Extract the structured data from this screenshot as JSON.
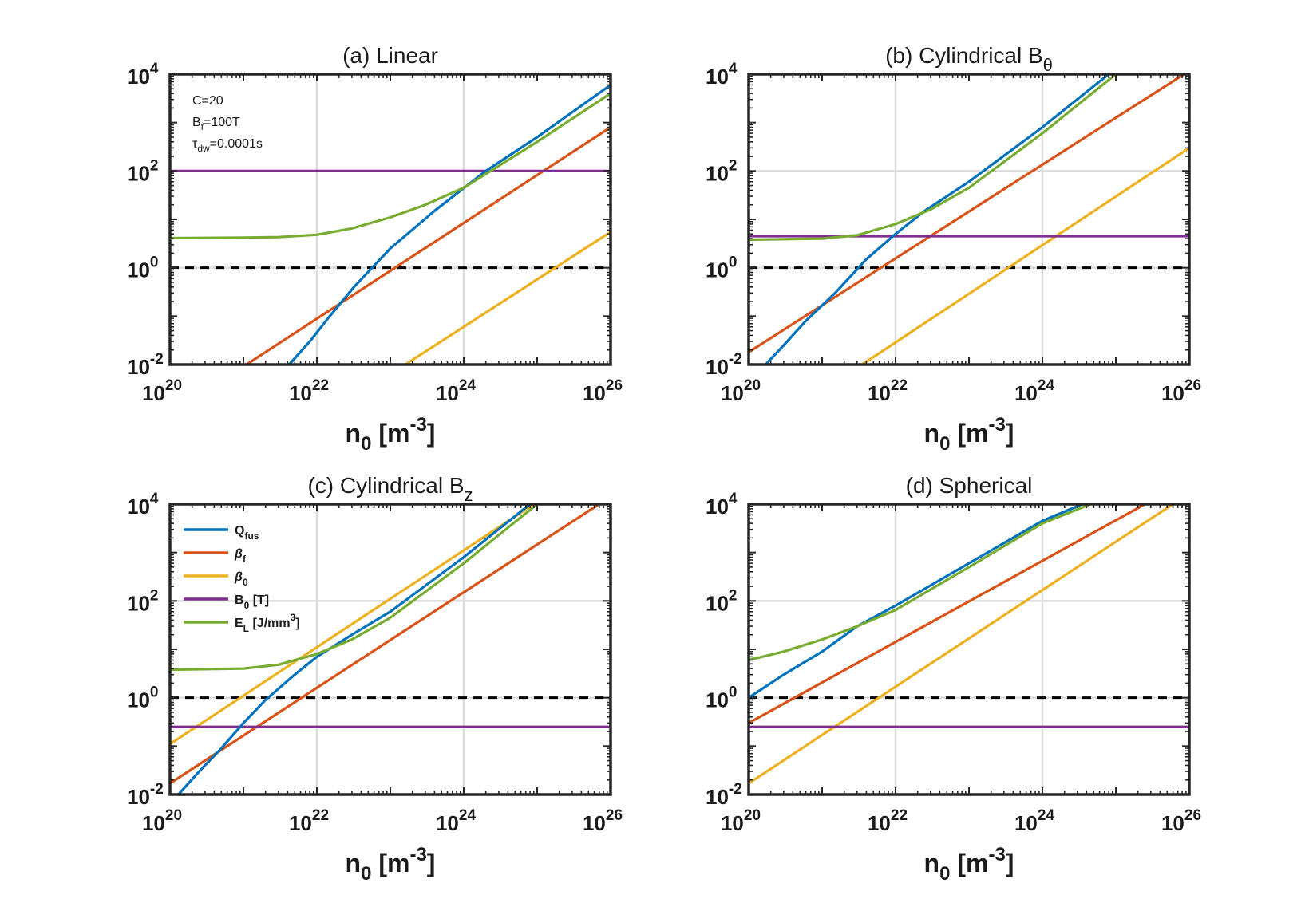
{
  "colors": {
    "Q_fus": "#0072BD",
    "beta_f": "#D95319",
    "beta_0": "#EDB120",
    "B_0": "#7E2F8E",
    "E_L": "#77AC30",
    "reference": "#000000",
    "grid": "#dcdcdc",
    "axes": "#262626"
  },
  "legend": {
    "panel": 2,
    "items": [
      {
        "key": "Q_fus",
        "base": "Q",
        "sub": "fus",
        "sup": "",
        "tail": "",
        "greek": false
      },
      {
        "key": "beta_f",
        "base": "β",
        "sub": "f",
        "sup": "",
        "tail": "",
        "greek": true
      },
      {
        "key": "beta_0",
        "base": "β",
        "sub": "0",
        "sup": "",
        "tail": "",
        "greek": true
      },
      {
        "key": "B_0",
        "base": "B",
        "sub": "0",
        "sup": "",
        "tail": " [T]",
        "greek": false
      },
      {
        "key": "E_L",
        "base": "E",
        "sub": "L",
        "sup": "3",
        "tail": " [J/mm",
        "close": "]",
        "greek": false
      }
    ]
  },
  "annotation": {
    "panel": 0,
    "lines": [
      {
        "base": "C=20",
        "sub": "",
        "tail": ""
      },
      {
        "base": "B",
        "sub": "f",
        "tail": "=100T"
      },
      {
        "base": "τ",
        "sub": "dw",
        "tail": "=0.0001s"
      }
    ]
  },
  "chart_data": [
    {
      "type": "line",
      "title": "(a) Linear",
      "title_sub": "",
      "xlabel": {
        "base": "n",
        "sub": "0",
        "unit_open": " [m",
        "sup": "-3",
        "unit_close": "]"
      },
      "xscale": "log",
      "yscale": "log",
      "xlim": [
        1e+20,
        1e+26
      ],
      "ylim": [
        0.01,
        10000
      ],
      "xticks": [
        {
          "base": "10",
          "exp": "20"
        },
        {
          "base": "10",
          "exp": "22"
        },
        {
          "base": "10",
          "exp": "24"
        },
        {
          "base": "10",
          "exp": "26"
        }
      ],
      "yticks": [
        {
          "base": "10",
          "exp": "-2"
        },
        {
          "base": "10",
          "exp": "0"
        },
        {
          "base": "10",
          "exp": "2"
        },
        {
          "base": "10",
          "exp": "4"
        }
      ],
      "grid": true,
      "reference_line": {
        "y": 1,
        "style": "dashed"
      },
      "series": [
        {
          "name": "Q_fus",
          "x": [
            4.2e+21,
            8e+21,
            1.5e+22,
            3.2e+22,
            1e+23,
            4e+23,
            2e+24,
            1e+25,
            1e+26
          ],
          "y": [
            0.01,
            0.03,
            0.1,
            0.4,
            2.5,
            15,
            100,
            500,
            6000
          ]
        },
        {
          "name": "beta_f",
          "x": [
            1.1e+21,
            1e+26
          ],
          "y": [
            0.01,
            800
          ]
        },
        {
          "name": "beta_0",
          "x": [
            1.6e+23,
            1e+26
          ],
          "y": [
            0.01,
            5.5
          ]
        },
        {
          "name": "B_0",
          "x": [
            1e+20,
            1e+26
          ],
          "y": [
            100,
            100
          ]
        },
        {
          "name": "E_L",
          "x": [
            1e+20,
            1e+21,
            3e+21,
            1e+22,
            3e+22,
            1e+23,
            3e+23,
            1e+24,
            1e+25,
            1e+26
          ],
          "y": [
            4.1,
            4.2,
            4.3,
            4.8,
            6.5,
            11,
            20,
            45,
            400,
            4000
          ]
        }
      ]
    },
    {
      "type": "line",
      "title": "(b) Cylindrical B",
      "title_sub": "θ",
      "xlabel": {
        "base": "n",
        "sub": "0",
        "unit_open": " [m",
        "sup": "-3",
        "unit_close": "]"
      },
      "xscale": "log",
      "yscale": "log",
      "xlim": [
        1e+20,
        1e+26
      ],
      "ylim": [
        0.01,
        10000
      ],
      "xticks": [
        {
          "base": "10",
          "exp": "20"
        },
        {
          "base": "10",
          "exp": "22"
        },
        {
          "base": "10",
          "exp": "24"
        },
        {
          "base": "10",
          "exp": "26"
        }
      ],
      "yticks": [
        {
          "base": "10",
          "exp": "-2"
        },
        {
          "base": "10",
          "exp": "0"
        },
        {
          "base": "10",
          "exp": "2"
        },
        {
          "base": "10",
          "exp": "4"
        }
      ],
      "grid": true,
      "reference_line": {
        "y": 1,
        "style": "dashed"
      },
      "series": [
        {
          "name": "Q_fus",
          "x": [
            1.7e+20,
            3e+20,
            6e+20,
            1.5e+21,
            4e+21,
            1e+22,
            2.5e+22,
            1e+23,
            1e+24,
            8e+24
          ],
          "y": [
            0.01,
            0.025,
            0.08,
            0.3,
            1.5,
            5,
            15,
            60,
            800,
            10000
          ]
        },
        {
          "name": "beta_f",
          "x": [
            1e+20,
            8.5e+25
          ],
          "y": [
            0.018,
            10000
          ]
        },
        {
          "name": "beta_0",
          "x": [
            3.5e+21,
            1e+26
          ],
          "y": [
            0.01,
            300
          ]
        },
        {
          "name": "B_0",
          "x": [
            1e+20,
            1e+26
          ],
          "y": [
            4.5,
            4.5
          ]
        },
        {
          "name": "E_L",
          "x": [
            1e+20,
            1e+21,
            3e+21,
            1e+22,
            3e+22,
            1e+23,
            1e+24,
            1e+25
          ],
          "y": [
            3.8,
            4.0,
            4.7,
            8,
            16,
            45,
            600,
            10000
          ]
        }
      ]
    },
    {
      "type": "line",
      "title": "(c) Cylindrical B",
      "title_sub": "z",
      "xlabel": {
        "base": "n",
        "sub": "0",
        "unit_open": " [m",
        "sup": "-3",
        "unit_close": "]"
      },
      "xscale": "log",
      "yscale": "log",
      "xlim": [
        1e+20,
        1e+26
      ],
      "ylim": [
        0.01,
        10000
      ],
      "xticks": [
        {
          "base": "10",
          "exp": "20"
        },
        {
          "base": "10",
          "exp": "22"
        },
        {
          "base": "10",
          "exp": "24"
        },
        {
          "base": "10",
          "exp": "26"
        }
      ],
      "yticks": [
        {
          "base": "10",
          "exp": "-2"
        },
        {
          "base": "10",
          "exp": "0"
        },
        {
          "base": "10",
          "exp": "2"
        },
        {
          "base": "10",
          "exp": "4"
        }
      ],
      "grid": true,
      "reference_line": {
        "y": 1,
        "style": "dashed"
      },
      "series": [
        {
          "name": "Q_fus",
          "x": [
            1.3e+20,
            2.5e+20,
            5e+20,
            1e+21,
            2e+21,
            5e+21,
            1e+22,
            3e+22,
            1e+23,
            1e+24,
            8e+24
          ],
          "y": [
            0.01,
            0.03,
            0.09,
            0.3,
            0.9,
            3,
            7,
            20,
            60,
            800,
            10000
          ]
        },
        {
          "name": "beta_f",
          "x": [
            1e+20,
            7e+25
          ],
          "y": [
            0.017,
            10000
          ]
        },
        {
          "name": "beta_0",
          "x": [
            1e+20,
            9e+24
          ],
          "y": [
            0.11,
            10000
          ]
        },
        {
          "name": "B_0",
          "x": [
            1e+20,
            1e+26
          ],
          "y": [
            0.25,
            0.25
          ]
        },
        {
          "name": "E_L",
          "x": [
            1e+20,
            1e+21,
            3e+21,
            1e+22,
            3e+22,
            1e+23,
            1e+24,
            1e+25
          ],
          "y": [
            3.8,
            4.0,
            4.8,
            8,
            16,
            45,
            600,
            10000
          ]
        }
      ]
    },
    {
      "type": "line",
      "title": "(d) Spherical",
      "title_sub": "",
      "xlabel": {
        "base": "n",
        "sub": "0",
        "unit_open": " [m",
        "sup": "-3",
        "unit_close": "]"
      },
      "xscale": "log",
      "yscale": "log",
      "xlim": [
        1e+20,
        1e+26
      ],
      "ylim": [
        0.01,
        10000
      ],
      "xticks": [
        {
          "base": "10",
          "exp": "20"
        },
        {
          "base": "10",
          "exp": "22"
        },
        {
          "base": "10",
          "exp": "24"
        },
        {
          "base": "10",
          "exp": "26"
        }
      ],
      "yticks": [
        {
          "base": "10",
          "exp": "-2"
        },
        {
          "base": "10",
          "exp": "0"
        },
        {
          "base": "10",
          "exp": "2"
        },
        {
          "base": "10",
          "exp": "4"
        }
      ],
      "grid": true,
      "reference_line": {
        "y": 1,
        "style": "dashed"
      },
      "series": [
        {
          "name": "Q_fus",
          "x": [
            1e+20,
            3e+20,
            1e+21,
            3e+21,
            1e+22,
            1e+23,
            1e+24,
            3.5e+24
          ],
          "y": [
            1,
            3,
            9,
            30,
            80,
            600,
            4500,
            10000
          ]
        },
        {
          "name": "beta_f",
          "x": [
            1e+20,
            2.5e+25
          ],
          "y": [
            0.3,
            10000
          ]
        },
        {
          "name": "beta_0",
          "x": [
            1e+20,
            6e+25
          ],
          "y": [
            0.017,
            10000
          ]
        },
        {
          "name": "B_0",
          "x": [
            1e+20,
            1e+26
          ],
          "y": [
            0.25,
            0.25
          ]
        },
        {
          "name": "E_L",
          "x": [
            1e+20,
            3e+20,
            1e+21,
            3e+21,
            1e+22,
            1e+23,
            1e+24,
            4.5e+24
          ],
          "y": [
            6,
            9,
            16,
            30,
            65,
            500,
            4000,
            10000
          ]
        }
      ]
    }
  ]
}
